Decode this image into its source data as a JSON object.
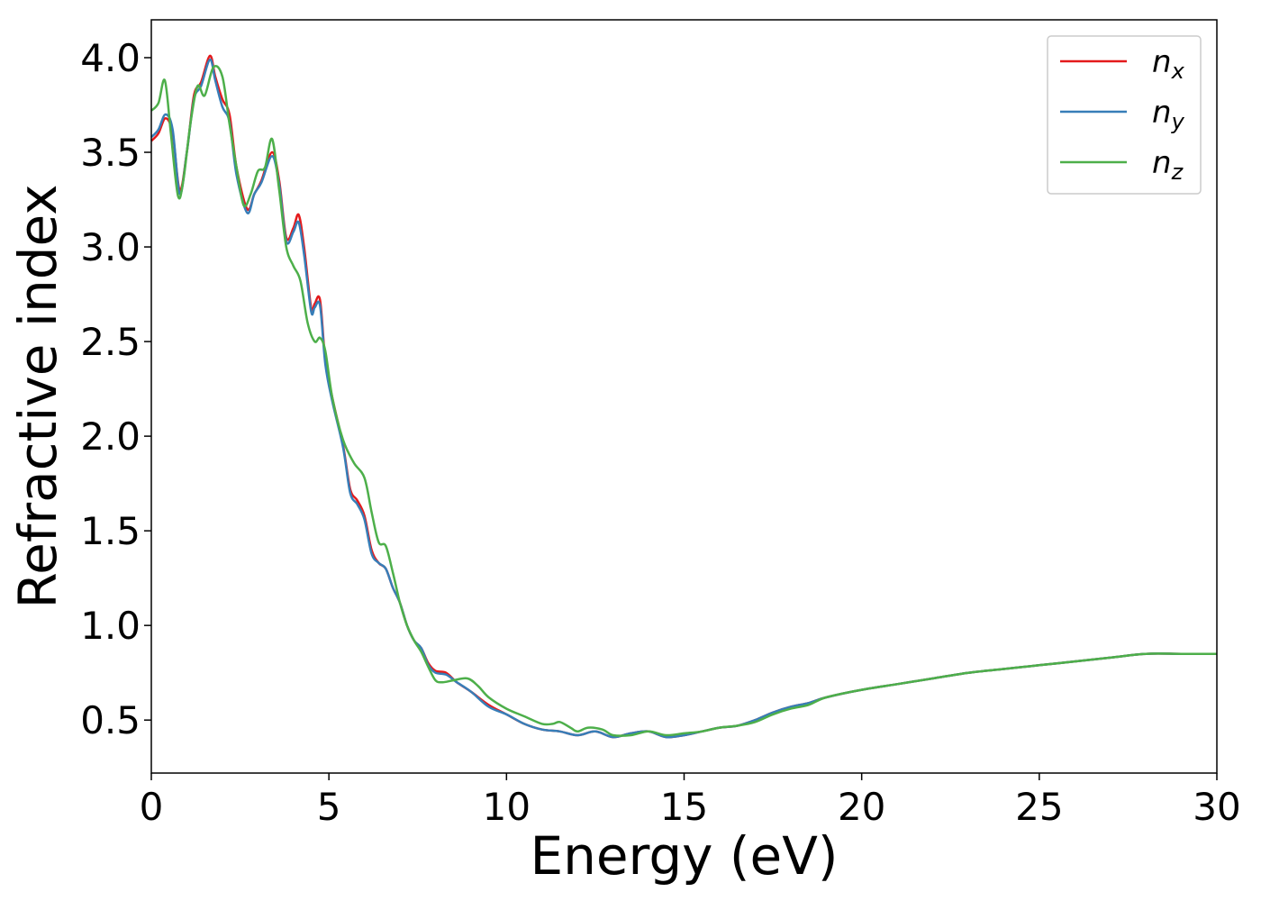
{
  "chart_data": {
    "type": "line",
    "xlabel": "Energy (eV)",
    "ylabel": "Refractive index",
    "xlim": [
      0,
      30
    ],
    "ylim": [
      0.22,
      4.2
    ],
    "xticks": [
      0,
      5,
      10,
      15,
      20,
      25,
      30
    ],
    "yticks": [
      0.5,
      1.0,
      1.5,
      2.0,
      2.5,
      3.0,
      3.5,
      4.0
    ],
    "grid": false,
    "legend_position": "top-right",
    "series": [
      {
        "name": "n_x",
        "label_main": "n",
        "label_sub": "x",
        "color": "#e41a1c",
        "x": [
          0,
          0.2,
          0.4,
          0.6,
          0.8,
          1.0,
          1.2,
          1.4,
          1.65,
          1.8,
          2.0,
          2.2,
          2.4,
          2.7,
          2.9,
          3.1,
          3.4,
          3.6,
          3.8,
          4.0,
          4.15,
          4.3,
          4.5,
          4.6,
          4.75,
          4.9,
          5.1,
          5.4,
          5.6,
          5.8,
          6.0,
          6.2,
          6.4,
          6.6,
          6.8,
          7.0,
          7.2,
          7.4,
          7.6,
          7.8,
          8.0,
          8.3,
          8.6,
          9.0,
          9.5,
          10.0,
          10.5,
          11.0,
          11.5,
          12.0,
          12.5,
          13.0,
          13.5,
          14.0,
          14.5,
          15.0,
          15.5,
          16.0,
          16.5,
          17.0,
          17.5,
          18.0,
          18.5,
          19.0,
          20.0,
          21.0,
          22.0,
          23.0,
          24.0,
          25.0,
          26.0,
          27.0,
          28.0,
          29.0,
          30.0
        ],
        "values": [
          3.56,
          3.6,
          3.68,
          3.6,
          3.3,
          3.5,
          3.8,
          3.87,
          4.01,
          3.9,
          3.78,
          3.7,
          3.42,
          3.2,
          3.28,
          3.35,
          3.5,
          3.35,
          3.05,
          3.1,
          3.17,
          3.0,
          2.68,
          2.7,
          2.72,
          2.4,
          2.2,
          1.95,
          1.72,
          1.66,
          1.58,
          1.4,
          1.33,
          1.3,
          1.2,
          1.12,
          1.0,
          0.92,
          0.88,
          0.8,
          0.76,
          0.75,
          0.7,
          0.65,
          0.58,
          0.53,
          0.48,
          0.45,
          0.44,
          0.42,
          0.44,
          0.41,
          0.43,
          0.44,
          0.41,
          0.42,
          0.44,
          0.46,
          0.47,
          0.5,
          0.54,
          0.57,
          0.59,
          0.62,
          0.66,
          0.69,
          0.72,
          0.75,
          0.77,
          0.79,
          0.81,
          0.83,
          0.85,
          0.85,
          0.85
        ]
      },
      {
        "name": "n_y",
        "label_main": "n",
        "label_sub": "y",
        "color": "#377eb8",
        "x": [
          0,
          0.2,
          0.4,
          0.6,
          0.8,
          1.0,
          1.2,
          1.4,
          1.65,
          1.8,
          2.0,
          2.2,
          2.4,
          2.7,
          2.9,
          3.1,
          3.4,
          3.6,
          3.8,
          4.0,
          4.15,
          4.3,
          4.5,
          4.6,
          4.75,
          4.9,
          5.1,
          5.4,
          5.6,
          5.8,
          6.0,
          6.2,
          6.4,
          6.6,
          6.8,
          7.0,
          7.2,
          7.4,
          7.6,
          7.8,
          8.0,
          8.3,
          8.6,
          9.0,
          9.5,
          10.0,
          10.5,
          11.0,
          11.5,
          12.0,
          12.5,
          13.0,
          13.5,
          14.0,
          14.5,
          15.0,
          15.5,
          16.0,
          16.5,
          17.0,
          17.5,
          18.0,
          18.5,
          19.0,
          20.0,
          21.0,
          22.0,
          23.0,
          24.0,
          25.0,
          26.0,
          27.0,
          28.0,
          29.0,
          30.0
        ],
        "values": [
          3.58,
          3.62,
          3.7,
          3.62,
          3.28,
          3.5,
          3.78,
          3.85,
          3.99,
          3.88,
          3.74,
          3.66,
          3.38,
          3.18,
          3.28,
          3.34,
          3.48,
          3.33,
          3.03,
          3.08,
          3.13,
          2.96,
          2.66,
          2.68,
          2.69,
          2.38,
          2.18,
          1.94,
          1.7,
          1.64,
          1.56,
          1.38,
          1.33,
          1.3,
          1.2,
          1.12,
          1.0,
          0.92,
          0.88,
          0.79,
          0.75,
          0.74,
          0.7,
          0.65,
          0.57,
          0.53,
          0.48,
          0.45,
          0.44,
          0.42,
          0.44,
          0.41,
          0.43,
          0.44,
          0.41,
          0.42,
          0.44,
          0.46,
          0.47,
          0.5,
          0.54,
          0.57,
          0.59,
          0.62,
          0.66,
          0.69,
          0.72,
          0.75,
          0.77,
          0.79,
          0.81,
          0.83,
          0.85,
          0.85,
          0.85
        ]
      },
      {
        "name": "n_z",
        "label_main": "n",
        "label_sub": "z",
        "color": "#4daf4a",
        "x": [
          0,
          0.2,
          0.38,
          0.55,
          0.75,
          0.9,
          1.1,
          1.3,
          1.5,
          1.75,
          2.0,
          2.2,
          2.4,
          2.6,
          2.8,
          3.0,
          3.2,
          3.4,
          3.6,
          3.8,
          4.0,
          4.2,
          4.4,
          4.6,
          4.75,
          4.9,
          5.1,
          5.4,
          5.7,
          6.0,
          6.2,
          6.4,
          6.6,
          6.8,
          7.0,
          7.2,
          7.4,
          7.6,
          7.8,
          8.0,
          8.2,
          8.5,
          8.9,
          9.2,
          9.5,
          10.0,
          10.5,
          11.0,
          11.3,
          11.5,
          11.8,
          12.0,
          12.3,
          12.7,
          13.0,
          13.5,
          14.0,
          14.5,
          15.0,
          15.5,
          16.0,
          16.5,
          17.0,
          17.5,
          18.0,
          18.5,
          19.0,
          20.0,
          21.0,
          22.0,
          23.0,
          24.0,
          25.0,
          26.0,
          27.0,
          28.0,
          29.0,
          30.0
        ],
        "values": [
          3.72,
          3.76,
          3.88,
          3.6,
          3.27,
          3.35,
          3.65,
          3.85,
          3.8,
          3.95,
          3.9,
          3.65,
          3.42,
          3.22,
          3.28,
          3.4,
          3.42,
          3.57,
          3.3,
          3.0,
          2.9,
          2.82,
          2.6,
          2.5,
          2.52,
          2.45,
          2.2,
          1.98,
          1.86,
          1.78,
          1.6,
          1.44,
          1.42,
          1.28,
          1.12,
          1.0,
          0.92,
          0.86,
          0.78,
          0.71,
          0.7,
          0.71,
          0.72,
          0.68,
          0.62,
          0.56,
          0.52,
          0.48,
          0.48,
          0.49,
          0.46,
          0.44,
          0.46,
          0.45,
          0.42,
          0.42,
          0.44,
          0.42,
          0.43,
          0.44,
          0.46,
          0.47,
          0.49,
          0.53,
          0.56,
          0.58,
          0.62,
          0.66,
          0.69,
          0.72,
          0.75,
          0.77,
          0.79,
          0.81,
          0.83,
          0.85,
          0.85,
          0.85
        ]
      }
    ]
  }
}
